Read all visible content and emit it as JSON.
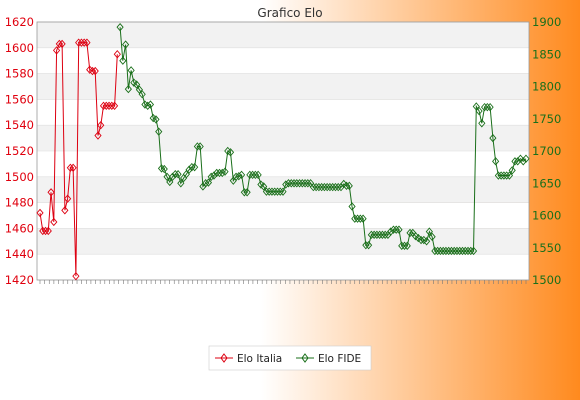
{
  "chart_data": {
    "type": "line",
    "title": "Grafico Elo",
    "background_gradient": [
      "#ffffff",
      "#ff8a1e"
    ],
    "band_colors": [
      "#f2f2f2",
      "#ffffff"
    ],
    "grid": true,
    "legend_position": "bottom",
    "left_axis": {
      "ylim": [
        1420,
        1620
      ],
      "ticks": [
        "1420",
        "1440",
        "1460",
        "1480",
        "1500",
        "1520",
        "1540",
        "1560",
        "1580",
        "1600",
        "1620"
      ],
      "color": "#e0000e"
    },
    "right_axis": {
      "ylim": [
        1500,
        1900
      ],
      "ticks": [
        "1500",
        "1550",
        "1600",
        "1650",
        "1700",
        "1750",
        "1800",
        "1850",
        "1900"
      ],
      "color": "#1a6f1a"
    },
    "x_tick_count": 106,
    "series": [
      {
        "name": "Elo Italia",
        "axis": "left",
        "color": "#dd0011",
        "marker": "diamond",
        "values": [
          1472,
          1458,
          1458,
          1458,
          1488,
          1465,
          1598,
          1603,
          1603,
          1474,
          1483,
          1507,
          1507,
          1423,
          1604,
          1604,
          1604,
          1604,
          1583,
          1582,
          1582,
          1532,
          1540,
          1555,
          1555,
          1555,
          1555,
          1555,
          1595
        ]
      },
      {
        "name": "Elo FIDE",
        "axis": "right",
        "x_start": 29,
        "color": "#1a6f1a",
        "marker": "diamond",
        "values": [
          1892,
          1840,
          1865,
          1796,
          1825,
          1806,
          1803,
          1795,
          1788,
          1772,
          1770,
          1772,
          1751,
          1749,
          1730,
          1673,
          1672,
          1660,
          1652,
          1660,
          1664,
          1664,
          1650,
          1658,
          1664,
          1671,
          1675,
          1675,
          1707,
          1707,
          1645,
          1650,
          1651,
          1660,
          1662,
          1666,
          1666,
          1666,
          1668,
          1700,
          1698,
          1654,
          1660,
          1661,
          1663,
          1636,
          1636,
          1663,
          1663,
          1663,
          1663,
          1648,
          1645,
          1637,
          1637,
          1637,
          1637,
          1637,
          1637,
          1637,
          1648,
          1650,
          1650,
          1650,
          1650,
          1650,
          1650,
          1650,
          1650,
          1650,
          1644,
          1644,
          1644,
          1644,
          1644,
          1644,
          1644,
          1644,
          1644,
          1644,
          1644,
          1649,
          1646,
          1646,
          1614,
          1595,
          1595,
          1595,
          1595,
          1554,
          1554,
          1570,
          1570,
          1570,
          1570,
          1570,
          1570,
          1570,
          1575,
          1578,
          1578,
          1578,
          1553,
          1553,
          1553,
          1573,
          1573,
          1568,
          1565,
          1562,
          1562,
          1560,
          1575,
          1567,
          1545,
          1545,
          1545,
          1545,
          1545,
          1545,
          1545,
          1545,
          1545,
          1545,
          1545,
          1545,
          1545,
          1545,
          1545,
          1769,
          1762,
          1743,
          1768,
          1768,
          1768,
          1720,
          1684,
          1662,
          1662,
          1662,
          1662,
          1662,
          1670,
          1684,
          1684,
          1688,
          1684,
          1688
        ]
      }
    ]
  }
}
